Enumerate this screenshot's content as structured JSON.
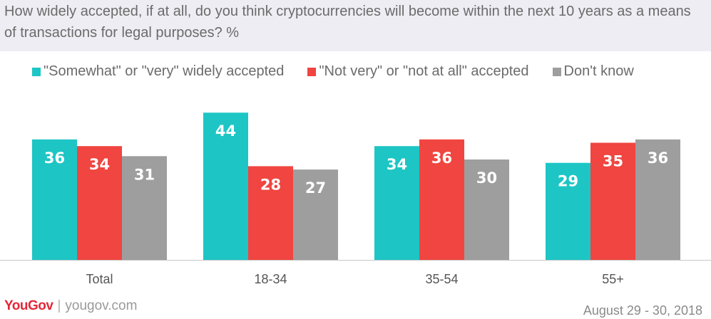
{
  "title": "How widely accepted, if at all, do you think cryptocurrencies will become within the next 10 years as a means of transactions for legal purposes? %",
  "footer": {
    "logo": "YouGov",
    "separator": "|",
    "url": "yougov.com",
    "date": "August 29 - 30, 2018"
  },
  "chart_data": {
    "type": "bar",
    "title": "How widely accepted, if at all, do you think cryptocurrencies will become within the next 10 years as a means of transactions for legal purposes? %",
    "xlabel": "",
    "ylabel": "",
    "categories": [
      "Total",
      "18-34",
      "35-54",
      "55+"
    ],
    "series": [
      {
        "name": "\"Somewhat\" or \"very\" widely accepted",
        "color": "#1ec5c5",
        "values": [
          36,
          44,
          34,
          29
        ]
      },
      {
        "name": "\"Not very\" or \"not at all\" accepted",
        "color": "#f04540",
        "values": [
          34,
          28,
          36,
          35
        ]
      },
      {
        "name": "Don't know",
        "color": "#9e9e9e",
        "values": [
          31,
          27,
          30,
          36
        ]
      }
    ],
    "ylim": [
      0,
      50
    ],
    "grid": false,
    "legend_position": "top-left",
    "data_labels": true
  }
}
